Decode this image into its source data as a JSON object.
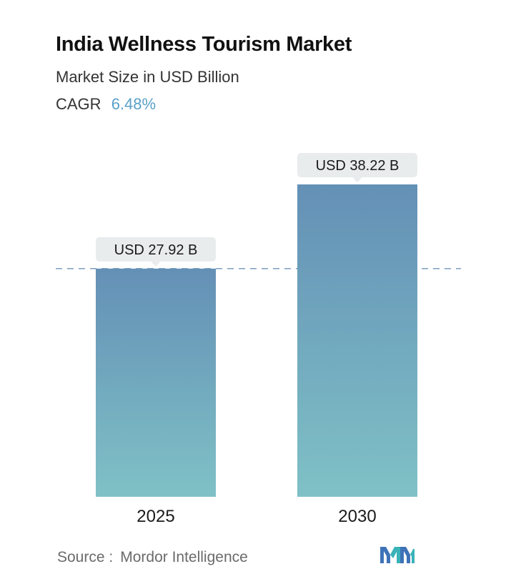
{
  "header": {
    "title": "India Wellness Tourism Market",
    "subtitle": "Market Size in USD Billion",
    "cagr_label": "CAGR",
    "cagr_value": "6.48%"
  },
  "colors": {
    "bar_top": "#6490b6",
    "bar_bottom": "#7fc1c6",
    "label_bg": "#e9eced",
    "dashed_line": "#7b9fc0",
    "cagr_accent": "#5aa0c8"
  },
  "chart_data": {
    "type": "bar",
    "categories": [
      "2025",
      "2030"
    ],
    "values": [
      27.92,
      38.22
    ],
    "data_labels": [
      "USD 27.92 B",
      "USD 38.22 B"
    ],
    "reference_line": 27.92,
    "ylim": [
      0,
      38.22
    ],
    "grid": false
  },
  "footer": {
    "source_label": "Source :",
    "source_value": "Mordor Intelligence",
    "logo_icon": "mordor-intelligence-logo-icon"
  }
}
